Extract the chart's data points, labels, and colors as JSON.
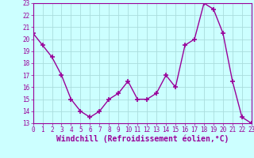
{
  "x": [
    0,
    1,
    2,
    3,
    4,
    5,
    6,
    7,
    8,
    9,
    10,
    11,
    12,
    13,
    14,
    15,
    16,
    17,
    18,
    19,
    20,
    21,
    22,
    23
  ],
  "y": [
    20.5,
    19.5,
    18.5,
    17.0,
    15.0,
    14.0,
    13.5,
    14.0,
    15.0,
    15.5,
    16.5,
    15.0,
    15.0,
    15.5,
    17.0,
    16.0,
    19.5,
    20.0,
    23.0,
    22.5,
    20.5,
    16.5,
    13.5,
    13.0
  ],
  "line_color": "#990099",
  "marker": "+",
  "marker_size": 4,
  "marker_linewidth": 1.2,
  "bg_color": "#ccffff",
  "grid_color": "#aadddd",
  "xlabel": "Windchill (Refroidissement éolien,°C)",
  "xlabel_color": "#990099",
  "ylim": [
    13,
    23
  ],
  "xlim": [
    0,
    23
  ],
  "yticks": [
    13,
    14,
    15,
    16,
    17,
    18,
    19,
    20,
    21,
    22,
    23
  ],
  "xticks": [
    0,
    1,
    2,
    3,
    4,
    5,
    6,
    7,
    8,
    9,
    10,
    11,
    12,
    13,
    14,
    15,
    16,
    17,
    18,
    19,
    20,
    21,
    22,
    23
  ],
  "tick_fontsize": 5.5,
  "xlabel_fontsize": 7.0,
  "line_width": 1.0,
  "axis_color": "#990099",
  "tick_color": "#990099"
}
